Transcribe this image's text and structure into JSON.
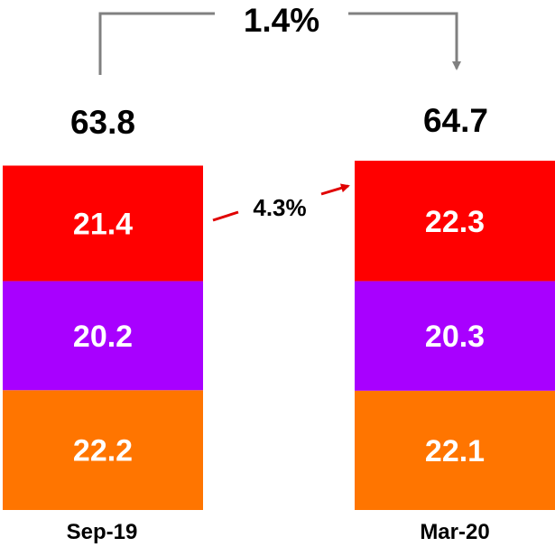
{
  "chart_data": {
    "type": "bar",
    "stacked": true,
    "categories": [
      "Sep-19",
      "Mar-20"
    ],
    "series": [
      {
        "values": [
          22.2,
          22.1
        ],
        "color": "#FF7500"
      },
      {
        "values": [
          20.2,
          20.3
        ],
        "color": "#A800FF"
      },
      {
        "values": [
          21.4,
          22.3
        ],
        "color": "#FF0000"
      }
    ],
    "totals": [
      "63.8",
      "64.7"
    ],
    "annotations": {
      "total_change": "1.4%",
      "top_segment_change": "4.3%"
    },
    "colors": {
      "bracket": "#808080",
      "arrow": "#E00000",
      "segment_label": "#FFFFFF",
      "total_label": "#000000"
    },
    "legend": "none",
    "grid": false,
    "axes_visible": false
  }
}
